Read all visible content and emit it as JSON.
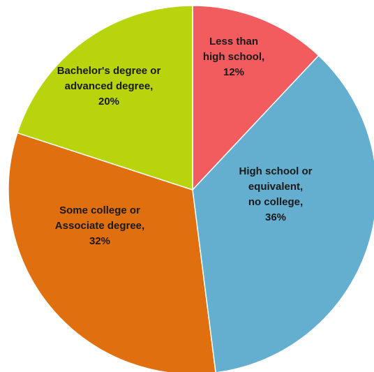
{
  "chart_data": {
    "type": "pie",
    "title": "",
    "start_angle_deg": 0,
    "direction": "clockwise",
    "slices": [
      {
        "label_lines": [
          "Less than",
          "high school,",
          "12%"
        ],
        "value": 12,
        "color": "#f25c5e"
      },
      {
        "label_lines": [
          "High school or",
          "equivalent,",
          "no college,",
          "36%"
        ],
        "value": 36,
        "color": "#64aed0"
      },
      {
        "label_lines": [
          "Some college or",
          "Associate degree,",
          "32%"
        ],
        "value": 32,
        "color": "#e0700f"
      },
      {
        "label_lines": [
          "Bachelor's degree or",
          "advanced degree,",
          "20%"
        ],
        "value": 20,
        "color": "#b8d40d"
      }
    ]
  }
}
